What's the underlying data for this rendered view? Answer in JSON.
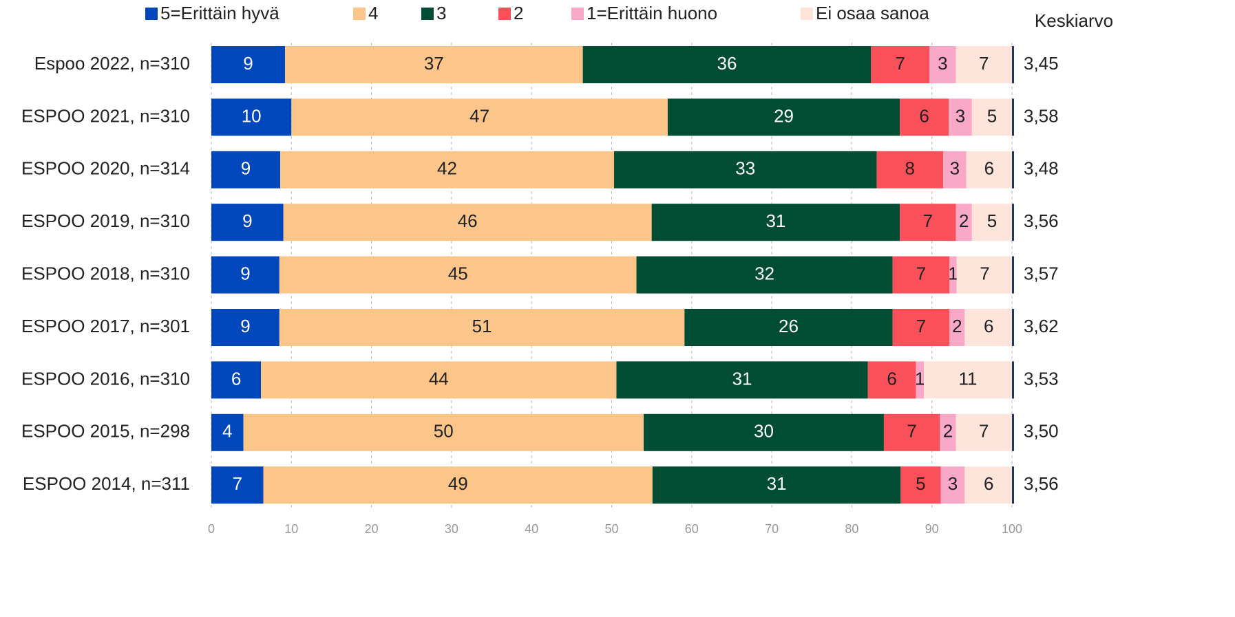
{
  "chart_data": {
    "type": "stacked-bar-horizontal",
    "categories": [
      "Espoo 2022, n=310",
      "ESPOO 2021, n=310",
      "ESPOO 2020, n=314",
      "ESPOO 2019, n=310",
      "ESPOO 2018, n=310",
      "ESPOO 2017, n=301",
      "ESPOO 2016, n=310",
      "ESPOO 2015, n=298",
      "ESPOO 2014, n=311"
    ],
    "series": [
      {
        "name": "5=Erittäin hyvä",
        "color": "#0047bb",
        "label_color": "#ffffff",
        "values": [
          9.2,
          10.0,
          8.6,
          9.0,
          8.5,
          8.5,
          6.2,
          4.0,
          6.5
        ],
        "value_labels": [
          "9",
          "10",
          "9",
          "9",
          "9",
          "9",
          "6",
          "4",
          "7"
        ]
      },
      {
        "name": "4",
        "color": "#fcc58a",
        "label_color": "#222222",
        "values": [
          37.2,
          47.0,
          41.7,
          46.0,
          44.6,
          50.6,
          44.4,
          50.0,
          48.6
        ],
        "value_labels": [
          "37",
          "47",
          "42",
          "46",
          "45",
          "51",
          "44",
          "50",
          "49"
        ]
      },
      {
        "name": "3",
        "color": "#004d33",
        "label_color": "#ffffff",
        "values": [
          36.0,
          29.0,
          32.8,
          31.0,
          32.0,
          26.0,
          31.4,
          30.0,
          31.0
        ],
        "value_labels": [
          "36",
          "29",
          "33",
          "31",
          "32",
          "26",
          "31",
          "30",
          "31"
        ]
      },
      {
        "name": "2",
        "color": "#f9505a",
        "label_color": "#222222",
        "values": [
          7.3,
          6.1,
          8.3,
          7.0,
          7.1,
          7.1,
          6.0,
          7.0,
          5.0
        ],
        "value_labels": [
          "7",
          "6",
          "8",
          "7",
          "7",
          "7",
          "6",
          "7",
          "5"
        ]
      },
      {
        "name": "1=Erittäin huono",
        "color": "#f9a8c8",
        "label_color": "#222222",
        "values": [
          3.3,
          2.9,
          2.9,
          2.0,
          0.9,
          1.9,
          1.0,
          2.0,
          3.0
        ],
        "value_labels": [
          "3",
          "3",
          "3",
          "2",
          "1",
          "2",
          "1",
          "2",
          "3"
        ]
      },
      {
        "name": "Ei osaa sanoa",
        "color": "#fde5dc",
        "label_color": "#222222",
        "values": [
          7.0,
          5.0,
          5.7,
          5.0,
          7.0,
          6.0,
          11.0,
          7.0,
          6.0
        ],
        "value_labels": [
          "7",
          "5",
          "6",
          "5",
          "7",
          "6",
          "11",
          "7",
          "6"
        ]
      }
    ],
    "mean_title": "Keskiarvo",
    "means": [
      "3,45",
      "3,58",
      "3,48",
      "3,56",
      "3,57",
      "3,62",
      "3,53",
      "3,50",
      "3,56"
    ],
    "xlim": [
      0,
      100
    ],
    "xticks": [
      0,
      10,
      20,
      30,
      40,
      50,
      60,
      70,
      80,
      90,
      100
    ],
    "grid": true
  }
}
